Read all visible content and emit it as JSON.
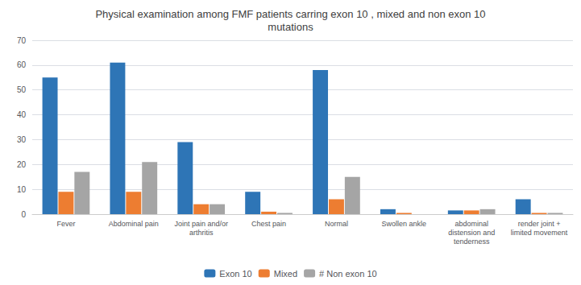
{
  "chart_data": {
    "type": "bar",
    "title": "Physical examination among FMF patients carring exon 10 , mixed and non exon 10\nmutations",
    "categories": [
      "Fever",
      "Abdominal pain",
      "Joint pain and/or\narthritis",
      "Chest pain",
      "Normal",
      "Swollen ankle",
      "abdominal\ndistension and\ntenderness",
      "render joint +\nlimited movement"
    ],
    "series": [
      {
        "name": "Exon 10",
        "color": "#2E75B6",
        "values": [
          55,
          61,
          29,
          9,
          58,
          2,
          1.5,
          6
        ]
      },
      {
        "name": "Mixed",
        "color": "#ED7D31",
        "values": [
          9,
          9,
          4,
          1,
          6,
          0.5,
          1.5,
          0.5
        ]
      },
      {
        "name": "# Non exon 10",
        "color": "#A5A5A5",
        "values": [
          17,
          21,
          4,
          0.5,
          15,
          0,
          2,
          0.5
        ]
      }
    ],
    "ylim": [
      0,
      70
    ],
    "yticks": [
      0,
      10,
      20,
      30,
      40,
      50,
      60,
      70
    ],
    "grid": true,
    "legend": "bottom"
  }
}
